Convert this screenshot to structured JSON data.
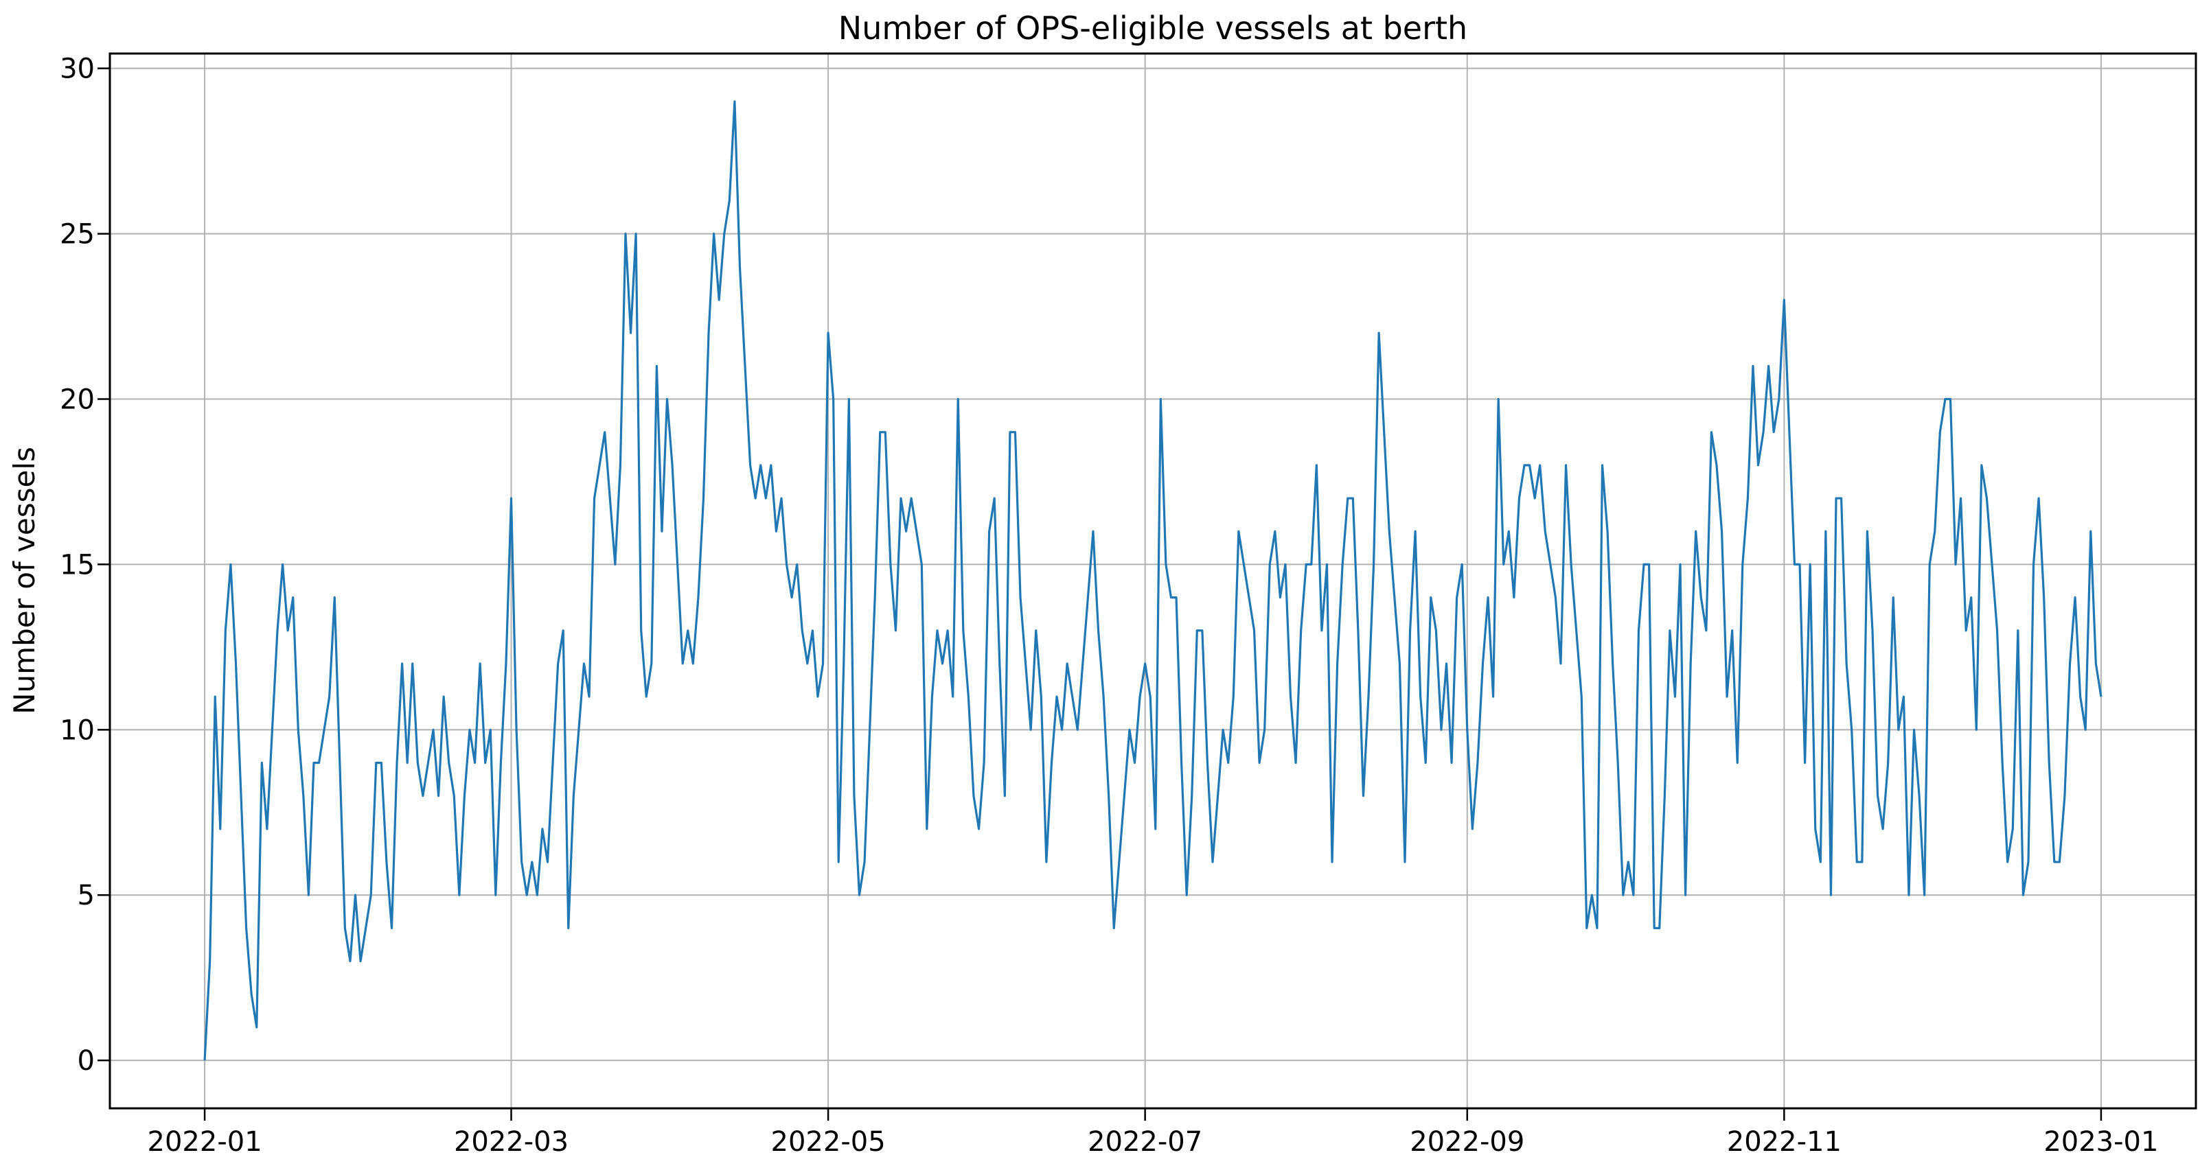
{
  "chart_data": {
    "type": "line",
    "title": "Number of OPS-eligible vessels at berth",
    "xlabel": "",
    "ylabel": "Number of vessels",
    "grid": true,
    "legend": "none",
    "line_color": "#1f77b4",
    "grid_color": "#b2b2b2",
    "background_color": "#ffffff",
    "y_ticks": [
      0,
      5,
      10,
      15,
      20,
      25,
      30
    ],
    "x_ticks": [
      {
        "label": "2022-01",
        "day": 0
      },
      {
        "label": "2022-03",
        "day": 59
      },
      {
        "label": "2022-05",
        "day": 120
      },
      {
        "label": "2022-07",
        "day": 181
      },
      {
        "label": "2022-09",
        "day": 243
      },
      {
        "label": "2022-11",
        "day": 304
      },
      {
        "label": "2023-01",
        "day": 365
      }
    ],
    "ylim": [
      -1.45,
      30.45
    ],
    "xlim_days": [
      -18.25,
      383.25
    ],
    "series": [
      {
        "start_date": "2022-01-01",
        "end_date": "2023-01-01",
        "interval_days": 1,
        "values": [
          0,
          3,
          11,
          7,
          13,
          15,
          12,
          8,
          4,
          2,
          1,
          9,
          7,
          10,
          13,
          15,
          13,
          14,
          10,
          8,
          5,
          9,
          9,
          10,
          11,
          14,
          9,
          4,
          3,
          5,
          3,
          4,
          5,
          9,
          9,
          6,
          4,
          9,
          12,
          9,
          12,
          9,
          8,
          9,
          10,
          8,
          11,
          9,
          8,
          5,
          8,
          10,
          9,
          12,
          9,
          10,
          5,
          9,
          12,
          17,
          10,
          6,
          5,
          6,
          5,
          7,
          6,
          9,
          12,
          13,
          4,
          8,
          10,
          12,
          11,
          17,
          18,
          19,
          17,
          15,
          18,
          25,
          22,
          25,
          13,
          11,
          12,
          21,
          16,
          20,
          18,
          15,
          12,
          13,
          12,
          14,
          17,
          22,
          25,
          23,
          25,
          26,
          29,
          24,
          21,
          18,
          17,
          18,
          17,
          18,
          16,
          17,
          15,
          14,
          15,
          13,
          12,
          13,
          11,
          12,
          22,
          20,
          6,
          12,
          20,
          8,
          5,
          6,
          10,
          14,
          19,
          19,
          15,
          13,
          17,
          16,
          17,
          16,
          15,
          7,
          11,
          13,
          12,
          13,
          11,
          20,
          13,
          11,
          8,
          7,
          9,
          16,
          17,
          12,
          8,
          19,
          19,
          14,
          12,
          10,
          13,
          11,
          6,
          9,
          11,
          10,
          12,
          11,
          10,
          12,
          14,
          16,
          13,
          11,
          8,
          4,
          6,
          8,
          10,
          9,
          11,
          12,
          11,
          7,
          20,
          15,
          14,
          14,
          9,
          5,
          8,
          13,
          13,
          9,
          6,
          8,
          10,
          9,
          11,
          16,
          15,
          14,
          13,
          9,
          10,
          15,
          16,
          14,
          15,
          11,
          9,
          13,
          15,
          15,
          18,
          13,
          15,
          6,
          12,
          15,
          17,
          17,
          13,
          8,
          11,
          15,
          22,
          19,
          16,
          14,
          12,
          6,
          13,
          16,
          11,
          9,
          14,
          13,
          10,
          12,
          9,
          14,
          15,
          10,
          7,
          9,
          12,
          14,
          11,
          20,
          15,
          16,
          14,
          17,
          18,
          18,
          17,
          18,
          16,
          15,
          14,
          12,
          18,
          15,
          13,
          11,
          4,
          5,
          4,
          18,
          16,
          12,
          9,
          5,
          6,
          5,
          13,
          15,
          15,
          4,
          4,
          8,
          13,
          11,
          15,
          5,
          12,
          16,
          14,
          13,
          19,
          18,
          16,
          11,
          13,
          9,
          15,
          17,
          21,
          18,
          19,
          21,
          19,
          20,
          23,
          19,
          15,
          15,
          9,
          15,
          7,
          6,
          16,
          5,
          17,
          17,
          12,
          10,
          6,
          6,
          16,
          13,
          8,
          7,
          9,
          14,
          10,
          11,
          5,
          10,
          8,
          5,
          15,
          16,
          19,
          20,
          20,
          15,
          17,
          13,
          14,
          10,
          18,
          17,
          15,
          13,
          9,
          6,
          7,
          13,
          5,
          6,
          15,
          17,
          14,
          9,
          6,
          6,
          8,
          12,
          14,
          11,
          10,
          16,
          12,
          11
        ]
      }
    ]
  }
}
